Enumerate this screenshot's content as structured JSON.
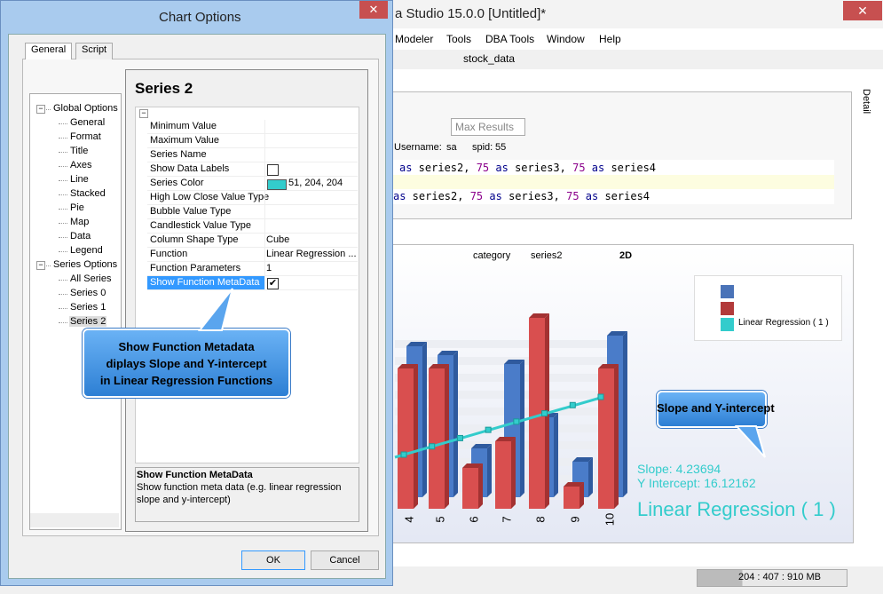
{
  "app": {
    "title": "a Studio 15.0.0 [Untitled]*",
    "menu": [
      "Modeler",
      "Tools",
      "DBA Tools",
      "Window",
      "Help"
    ],
    "toolbar_label": "stock_data",
    "max_results": "Max Results",
    "session": [
      "Username:",
      "sa",
      "spid:",
      "55"
    ],
    "code_lines": [
      [
        {
          "text": "as",
          "color": "#00008b"
        },
        {
          "text": " series2, ",
          "color": "#000000"
        },
        {
          "text": "75",
          "color": "#8b008b"
        },
        {
          "text": " as",
          "color": "#00008b"
        },
        {
          "text": " series3, ",
          "color": "#000000"
        },
        {
          "text": "75",
          "color": "#8b008b"
        },
        {
          "text": " as",
          "color": "#00008b"
        },
        {
          "text": " series4",
          "color": "#000000"
        }
      ],
      [
        {
          "text": "as",
          "color": "#00008b"
        },
        {
          "text": " series2, ",
          "color": "#000000"
        },
        {
          "text": "75",
          "color": "#8b008b"
        },
        {
          "text": " as",
          "color": "#00008b"
        },
        {
          "text": " series3, ",
          "color": "#000000"
        },
        {
          "text": "75",
          "color": "#8b008b"
        },
        {
          "text": " as",
          "color": "#00008b"
        },
        {
          "text": " series4",
          "color": "#000000"
        }
      ]
    ],
    "chart_toolbar": [
      "category",
      "series2",
      "2D"
    ],
    "legend": "Linear Regression ( 1 )",
    "categories": [
      "4",
      "5",
      "6",
      "7",
      "8",
      "9",
      "10"
    ],
    "slope": "Slope: 4.23694",
    "intercept": "Y Intercept: 16.12162",
    "regression_title": "Linear Regression ( 1 )",
    "status": "204 : 407 : 910 MB",
    "side_tab": "Detail",
    "callout": "Slope and Y-intercept"
  },
  "dialog": {
    "title": "Chart Options",
    "tabs": [
      "General",
      "Script"
    ],
    "tree": [
      {
        "label": "Global Options",
        "level": 0
      },
      {
        "label": "General",
        "level": 1
      },
      {
        "label": "Format",
        "level": 1
      },
      {
        "label": "Title",
        "level": 1
      },
      {
        "label": "Axes",
        "level": 1
      },
      {
        "label": "Line",
        "level": 1
      },
      {
        "label": "Stacked",
        "level": 1
      },
      {
        "label": "Pie",
        "level": 1
      },
      {
        "label": "Map",
        "level": 1
      },
      {
        "label": "Data",
        "level": 1
      },
      {
        "label": "Legend",
        "level": 1
      },
      {
        "label": "Series Options",
        "level": 0
      },
      {
        "label": "All Series",
        "level": 1
      },
      {
        "label": "Series 0",
        "level": 1
      },
      {
        "label": "Series 1",
        "level": 1
      },
      {
        "label": "Series 2",
        "level": 1,
        "selected": true
      }
    ],
    "panel_title": "Series 2",
    "properties": [
      {
        "name": "Minimum Value"
      },
      {
        "name": "Maximum Value"
      },
      {
        "name": "Series Name"
      },
      {
        "name": "Show Data Labels",
        "checked": false
      },
      {
        "name": "Series Color",
        "value": "51, 204, 204",
        "swatch": "#33cccc"
      },
      {
        "name": "High Low Close Value Type"
      },
      {
        "name": "Bubble Value Type"
      },
      {
        "name": "Candlestick Value Type"
      },
      {
        "name": "Column Shape Type",
        "value": "Cube"
      },
      {
        "name": "Function",
        "value": "Linear Regression ..."
      },
      {
        "name": "Function Parameters",
        "value": "1"
      },
      {
        "name": "Show Function MetaData",
        "checked": true,
        "selected": true
      }
    ],
    "description_title": "Show Function MetaData",
    "description": [
      "Show function meta data (e.g. linear regression",
      "slope and y-intercept)"
    ],
    "buttons": [
      "OK",
      "Cancel"
    ],
    "callout": [
      "Show Function Metadata",
      "diplays Slope and Y-intercept",
      "in Linear Regression Functions"
    ]
  }
}
